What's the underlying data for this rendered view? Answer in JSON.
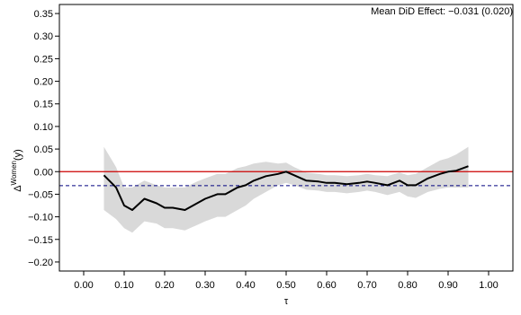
{
  "chart_data": {
    "type": "line",
    "annotation": "Mean DiD Effect: −0.031 (0.020)",
    "xlabel": "τ",
    "ylabel_main": "Δ",
    "ylabel_sup": "Women",
    "ylabel_tail": "(y)",
    "xlim": [
      -0.06,
      1.06
    ],
    "ylim": [
      -0.22,
      0.37
    ],
    "x_ticks": [
      0.0,
      0.1,
      0.2,
      0.3,
      0.4,
      0.5,
      0.6,
      0.7,
      0.8,
      0.9,
      1.0
    ],
    "x_tick_labels": [
      "0.00",
      "0.10",
      "0.20",
      "0.30",
      "0.40",
      "0.50",
      "0.60",
      "0.70",
      "0.80",
      "0.90",
      "1.00"
    ],
    "y_ticks": [
      -0.2,
      -0.15,
      -0.1,
      -0.05,
      0.0,
      0.05,
      0.1,
      0.15,
      0.2,
      0.25,
      0.3,
      0.35
    ],
    "y_tick_labels": [
      "−0.20",
      "−0.15",
      "−0.10",
      "−0.05",
      "0.00",
      "0.05",
      "0.10",
      "0.15",
      "0.20",
      "0.25",
      "0.30",
      "0.35"
    ],
    "zero_line": {
      "y": 0.0,
      "color": "#cc0000"
    },
    "mean_line": {
      "y": -0.031,
      "color": "#000080"
    },
    "x": [
      0.05,
      0.08,
      0.1,
      0.12,
      0.15,
      0.18,
      0.2,
      0.22,
      0.25,
      0.28,
      0.3,
      0.33,
      0.35,
      0.38,
      0.4,
      0.42,
      0.45,
      0.48,
      0.5,
      0.52,
      0.55,
      0.58,
      0.6,
      0.62,
      0.65,
      0.68,
      0.7,
      0.72,
      0.75,
      0.78,
      0.8,
      0.82,
      0.85,
      0.88,
      0.9,
      0.92,
      0.95
    ],
    "y": [
      -0.008,
      -0.035,
      -0.075,
      -0.085,
      -0.06,
      -0.07,
      -0.08,
      -0.08,
      -0.085,
      -0.07,
      -0.06,
      -0.05,
      -0.05,
      -0.035,
      -0.03,
      -0.02,
      -0.01,
      -0.005,
      0.0,
      -0.008,
      -0.02,
      -0.022,
      -0.025,
      -0.025,
      -0.028,
      -0.025,
      -0.022,
      -0.025,
      -0.03,
      -0.02,
      -0.03,
      -0.03,
      -0.015,
      -0.005,
      0.0,
      0.002,
      0.012
    ],
    "ci_upper": [
      0.055,
      0.01,
      -0.035,
      -0.035,
      -0.02,
      -0.03,
      -0.035,
      -0.035,
      -0.035,
      -0.022,
      -0.015,
      -0.005,
      -0.005,
      0.008,
      0.012,
      0.018,
      0.022,
      0.018,
      0.02,
      0.01,
      -0.002,
      -0.005,
      -0.008,
      -0.008,
      -0.01,
      -0.008,
      -0.005,
      -0.008,
      -0.01,
      -0.002,
      -0.008,
      -0.005,
      0.01,
      0.025,
      0.03,
      0.038,
      0.055
    ],
    "ci_lower": [
      -0.085,
      -0.105,
      -0.125,
      -0.135,
      -0.11,
      -0.115,
      -0.125,
      -0.125,
      -0.13,
      -0.118,
      -0.11,
      -0.1,
      -0.1,
      -0.085,
      -0.075,
      -0.06,
      -0.045,
      -0.03,
      -0.025,
      -0.03,
      -0.04,
      -0.042,
      -0.045,
      -0.045,
      -0.048,
      -0.045,
      -0.042,
      -0.045,
      -0.052,
      -0.045,
      -0.055,
      -0.058,
      -0.045,
      -0.038,
      -0.035,
      -0.035,
      -0.035
    ],
    "colors": {
      "line": "#000000",
      "band": "#d9d9d9"
    }
  }
}
